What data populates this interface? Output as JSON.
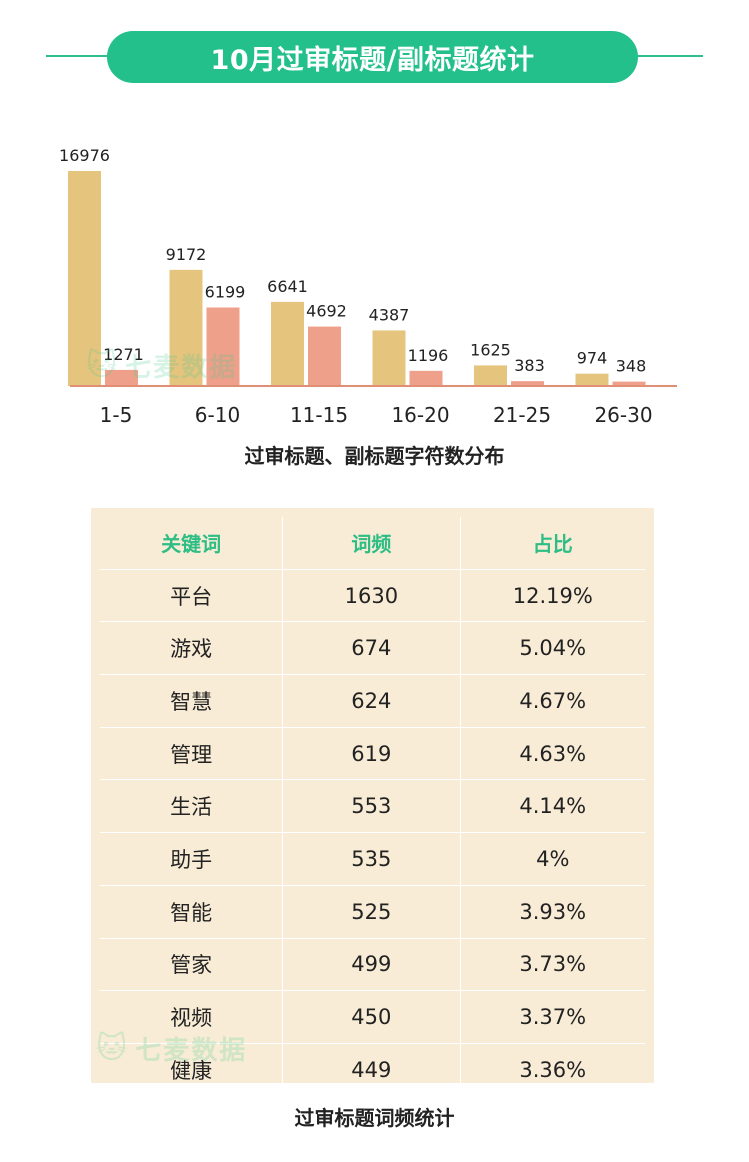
{
  "header": {
    "title": "10月过审标题/副标题统计"
  },
  "chart_data": {
    "type": "bar",
    "categories": [
      "1-5",
      "6-10",
      "11-15",
      "16-20",
      "21-25",
      "26-30"
    ],
    "series": [
      {
        "values": [
          16976,
          9172,
          6641,
          4387,
          1625,
          974
        ],
        "color": "#e5c47e"
      },
      {
        "values": [
          1271,
          6199,
          4692,
          1196,
          383,
          348
        ],
        "color": "#eea08b"
      }
    ],
    "title": "过审标题、副标题字符数分布",
    "ylim": [
      0,
      16976
    ],
    "grid": false,
    "axis_color": "#e08f74"
  },
  "watermark": {
    "text": "七麦数据"
  },
  "table": {
    "headers": [
      "关键词",
      "词频",
      "占比"
    ],
    "rows": [
      [
        "平台",
        "1630",
        "12.19%"
      ],
      [
        "游戏",
        "674",
        "5.04%"
      ],
      [
        "智慧",
        "624",
        "4.67%"
      ],
      [
        "管理",
        "619",
        "4.63%"
      ],
      [
        "生活",
        "553",
        "4.14%"
      ],
      [
        "助手",
        "535",
        "4%"
      ],
      [
        "智能",
        "525",
        "3.93%"
      ],
      [
        "管家",
        "499",
        "3.73%"
      ],
      [
        "视频",
        "450",
        "3.37%"
      ],
      [
        "健康",
        "449",
        "3.36%"
      ]
    ],
    "caption": "过审标题词频统计"
  }
}
